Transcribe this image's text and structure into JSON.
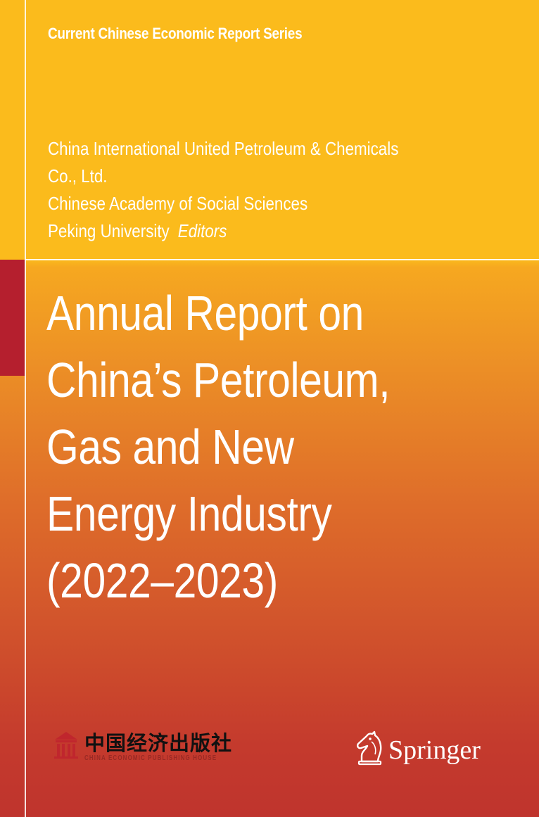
{
  "series": "Current Chinese Economic Report Series",
  "editors": {
    "lines": [
      "China International United Petroleum & Chemicals",
      "Co., Ltd.",
      "Chinese Academy of Social Sciences",
      "Peking University"
    ],
    "role": "Editors"
  },
  "title": {
    "lines": [
      "Annual Report on",
      "China’s Petroleum,",
      "Gas and New",
      "Energy Industry",
      "(2022–2023)"
    ]
  },
  "publishers": {
    "chinese": {
      "name": "中国经济出版社",
      "english": "CHINA ECONOMIC PUBLISHING HOUSE",
      "logo_icon": "gate-emblem-icon"
    },
    "springer": {
      "name": "Springer",
      "logo_icon": "chess-knight-icon"
    }
  },
  "colors": {
    "top_band": "#fbbb1c",
    "gradient_mid": "#de6c2a",
    "gradient_bottom": "#bf342d",
    "accent_tab": "#b51f2e",
    "text": "#ffffff"
  }
}
